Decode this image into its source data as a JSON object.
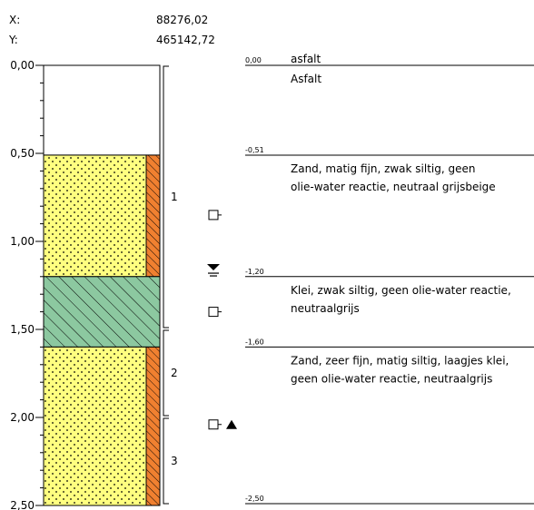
{
  "coordinates": {
    "x_label": "X:",
    "x_value": "88276,02",
    "y_label": "Y:",
    "y_value": "465142,72"
  },
  "depth_scale": {
    "min": 0,
    "max": 2.5,
    "major_ticks": [
      {
        "value": 0.0,
        "label": "0,00"
      },
      {
        "value": 0.5,
        "label": "0,50"
      },
      {
        "value": 1.0,
        "label": "1,00"
      },
      {
        "value": 1.5,
        "label": "1,50"
      },
      {
        "value": 2.0,
        "label": "2,00"
      },
      {
        "value": 2.5,
        "label": "2,50"
      }
    ],
    "minor_step": 0.1
  },
  "layers": [
    {
      "id": "asphalt",
      "top": 0.0,
      "bottom": 0.51,
      "pattern": "none",
      "fill": "#ffffff",
      "side_strip": false,
      "top_label": "0,00",
      "title": "asfalt",
      "description": [
        "Asfalt"
      ]
    },
    {
      "id": "sand-1",
      "top": 0.51,
      "bottom": 1.2,
      "pattern": "dots",
      "fill": "#ffff80",
      "side_strip": true,
      "top_label": "-0,51",
      "title": "",
      "description": [
        "Zand, matig fijn, zwak siltig, geen",
        "olie-water reactie, neutraal grijsbeige"
      ]
    },
    {
      "id": "clay",
      "top": 1.2,
      "bottom": 1.6,
      "pattern": "hatch",
      "fill": "#8cc8a0",
      "side_strip": false,
      "top_label": "-1,20",
      "title": "",
      "description": [
        "Klei, zwak siltig, geen olie-water reactie,",
        "neutraalgrijs"
      ]
    },
    {
      "id": "sand-2",
      "top": 1.6,
      "bottom": 2.5,
      "pattern": "dots",
      "fill": "#ffff80",
      "side_strip": true,
      "top_label": "-1,60",
      "title": "",
      "description": [
        "Zand, zeer fijn, matig siltig, laagjes klei,",
        "geen olie-water reactie, neutraalgrijs"
      ]
    }
  ],
  "bottom_label": "-2,50",
  "sample_brackets": [
    {
      "top": 0.0,
      "bottom": 1.5,
      "label": "1"
    },
    {
      "top": 1.5,
      "bottom": 2.0,
      "label": "2"
    },
    {
      "top": 2.0,
      "bottom": 2.5,
      "label": "3"
    }
  ],
  "markers": [
    {
      "type": "sample",
      "depth": 0.85,
      "with_triangle": false
    },
    {
      "type": "groundwater",
      "depth": 1.16
    },
    {
      "type": "sample",
      "depth": 1.4,
      "with_triangle": false
    },
    {
      "type": "sample",
      "depth": 2.04,
      "with_triangle": true
    }
  ],
  "colors": {
    "sand": "#ffff80",
    "clay": "#8cc8a0",
    "strip": "#f08030",
    "line": "#000000"
  }
}
